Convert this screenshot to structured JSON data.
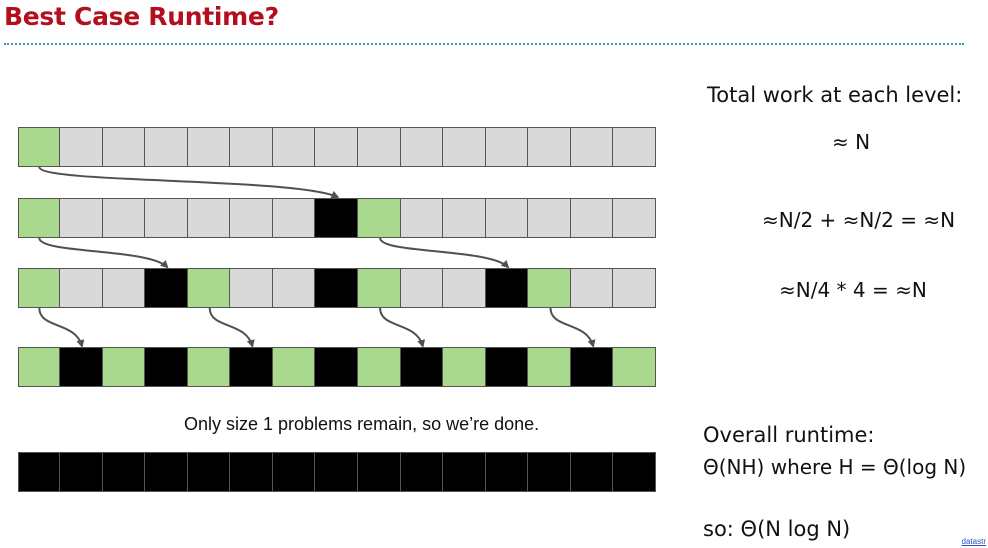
{
  "title": "Best Case Runtime?",
  "note": "Only size 1 problems remain, so we’re done.",
  "right": {
    "heading": "Total work at each level:",
    "level1": "≈ N",
    "level2": "≈N/2 + ≈N/2 = ≈N",
    "level3": "≈N/4 * 4 = ≈N",
    "overall_heading": "Overall runtime:",
    "overall_formula": "Θ(NH) where H = Θ(log N)",
    "overall_so": "so: Θ(N log N)"
  },
  "footer_link": "datastr",
  "colors": {
    "pivot": "#a9d98c",
    "unsorted": "#d9d9d9",
    "sorted": "#000000",
    "border": "#555555",
    "arrow": "#505050"
  },
  "rows": [
    {
      "cells": [
        "P",
        "U",
        "U",
        "U",
        "U",
        "U",
        "U",
        "U",
        "U",
        "U",
        "U",
        "U",
        "U",
        "U",
        "U"
      ]
    },
    {
      "cells": [
        "P",
        "U",
        "U",
        "U",
        "U",
        "U",
        "U",
        "S",
        "P",
        "U",
        "U",
        "U",
        "U",
        "U",
        "U"
      ]
    },
    {
      "cells": [
        "P",
        "U",
        "U",
        "S",
        "P",
        "U",
        "U",
        "S",
        "P",
        "U",
        "U",
        "S",
        "P",
        "U",
        "U"
      ]
    },
    {
      "cells": [
        "P",
        "S",
        "P",
        "S",
        "P",
        "S",
        "P",
        "S",
        "P",
        "S",
        "P",
        "S",
        "P",
        "S",
        "P"
      ]
    },
    {
      "cells": [
        "S",
        "S",
        "S",
        "S",
        "S",
        "S",
        "S",
        "S",
        "S",
        "S",
        "S",
        "S",
        "S",
        "S",
        "S"
      ]
    }
  ],
  "arrows": [
    {
      "from_row": 0,
      "from_cell": 0,
      "to_row": 1,
      "to_cell": 7
    },
    {
      "from_row": 1,
      "from_cell": 0,
      "to_row": 2,
      "to_cell": 3
    },
    {
      "from_row": 1,
      "from_cell": 8,
      "to_row": 2,
      "to_cell": 11
    },
    {
      "from_row": 2,
      "from_cell": 0,
      "to_row": 3,
      "to_cell": 1
    },
    {
      "from_row": 2,
      "from_cell": 4,
      "to_row": 3,
      "to_cell": 5
    },
    {
      "from_row": 2,
      "from_cell": 8,
      "to_row": 3,
      "to_cell": 9
    },
    {
      "from_row": 2,
      "from_cell": 12,
      "to_row": 3,
      "to_cell": 13
    }
  ]
}
